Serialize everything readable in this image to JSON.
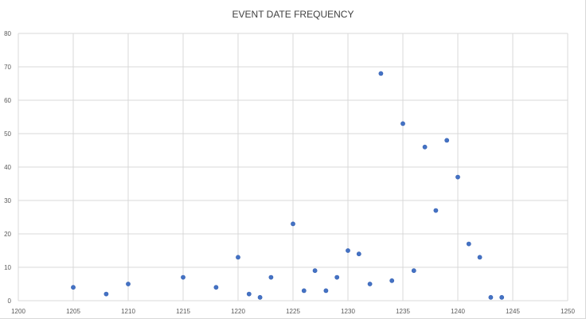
{
  "chart_data": {
    "type": "scatter",
    "title": "EVENT DATE FREQUENCY",
    "xlabel": "",
    "ylabel": "",
    "xlim": [
      1200,
      1250
    ],
    "ylim": [
      0,
      80
    ],
    "x_ticks": [
      1200,
      1205,
      1210,
      1215,
      1220,
      1225,
      1230,
      1235,
      1240,
      1245,
      1250
    ],
    "y_ticks": [
      0,
      10,
      20,
      30,
      40,
      50,
      60,
      70,
      80
    ],
    "grid": true,
    "legend": "none",
    "marker_color": "#4472C4",
    "series": [
      {
        "points": [
          {
            "x": 1205,
            "y": 4
          },
          {
            "x": 1208,
            "y": 2
          },
          {
            "x": 1210,
            "y": 5
          },
          {
            "x": 1215,
            "y": 7
          },
          {
            "x": 1218,
            "y": 4
          },
          {
            "x": 1220,
            "y": 13
          },
          {
            "x": 1221,
            "y": 2
          },
          {
            "x": 1222,
            "y": 1
          },
          {
            "x": 1223,
            "y": 7
          },
          {
            "x": 1225,
            "y": 23
          },
          {
            "x": 1226,
            "y": 3
          },
          {
            "x": 1227,
            "y": 9
          },
          {
            "x": 1228,
            "y": 3
          },
          {
            "x": 1229,
            "y": 7
          },
          {
            "x": 1230,
            "y": 15
          },
          {
            "x": 1231,
            "y": 14
          },
          {
            "x": 1232,
            "y": 5
          },
          {
            "x": 1233,
            "y": 68
          },
          {
            "x": 1234,
            "y": 6
          },
          {
            "x": 1235,
            "y": 53
          },
          {
            "x": 1236,
            "y": 9
          },
          {
            "x": 1237,
            "y": 46
          },
          {
            "x": 1238,
            "y": 27
          },
          {
            "x": 1239,
            "y": 48
          },
          {
            "x": 1240,
            "y": 37
          },
          {
            "x": 1241,
            "y": 17
          },
          {
            "x": 1242,
            "y": 13
          },
          {
            "x": 1243,
            "y": 1
          },
          {
            "x": 1244,
            "y": 1
          }
        ]
      }
    ]
  }
}
